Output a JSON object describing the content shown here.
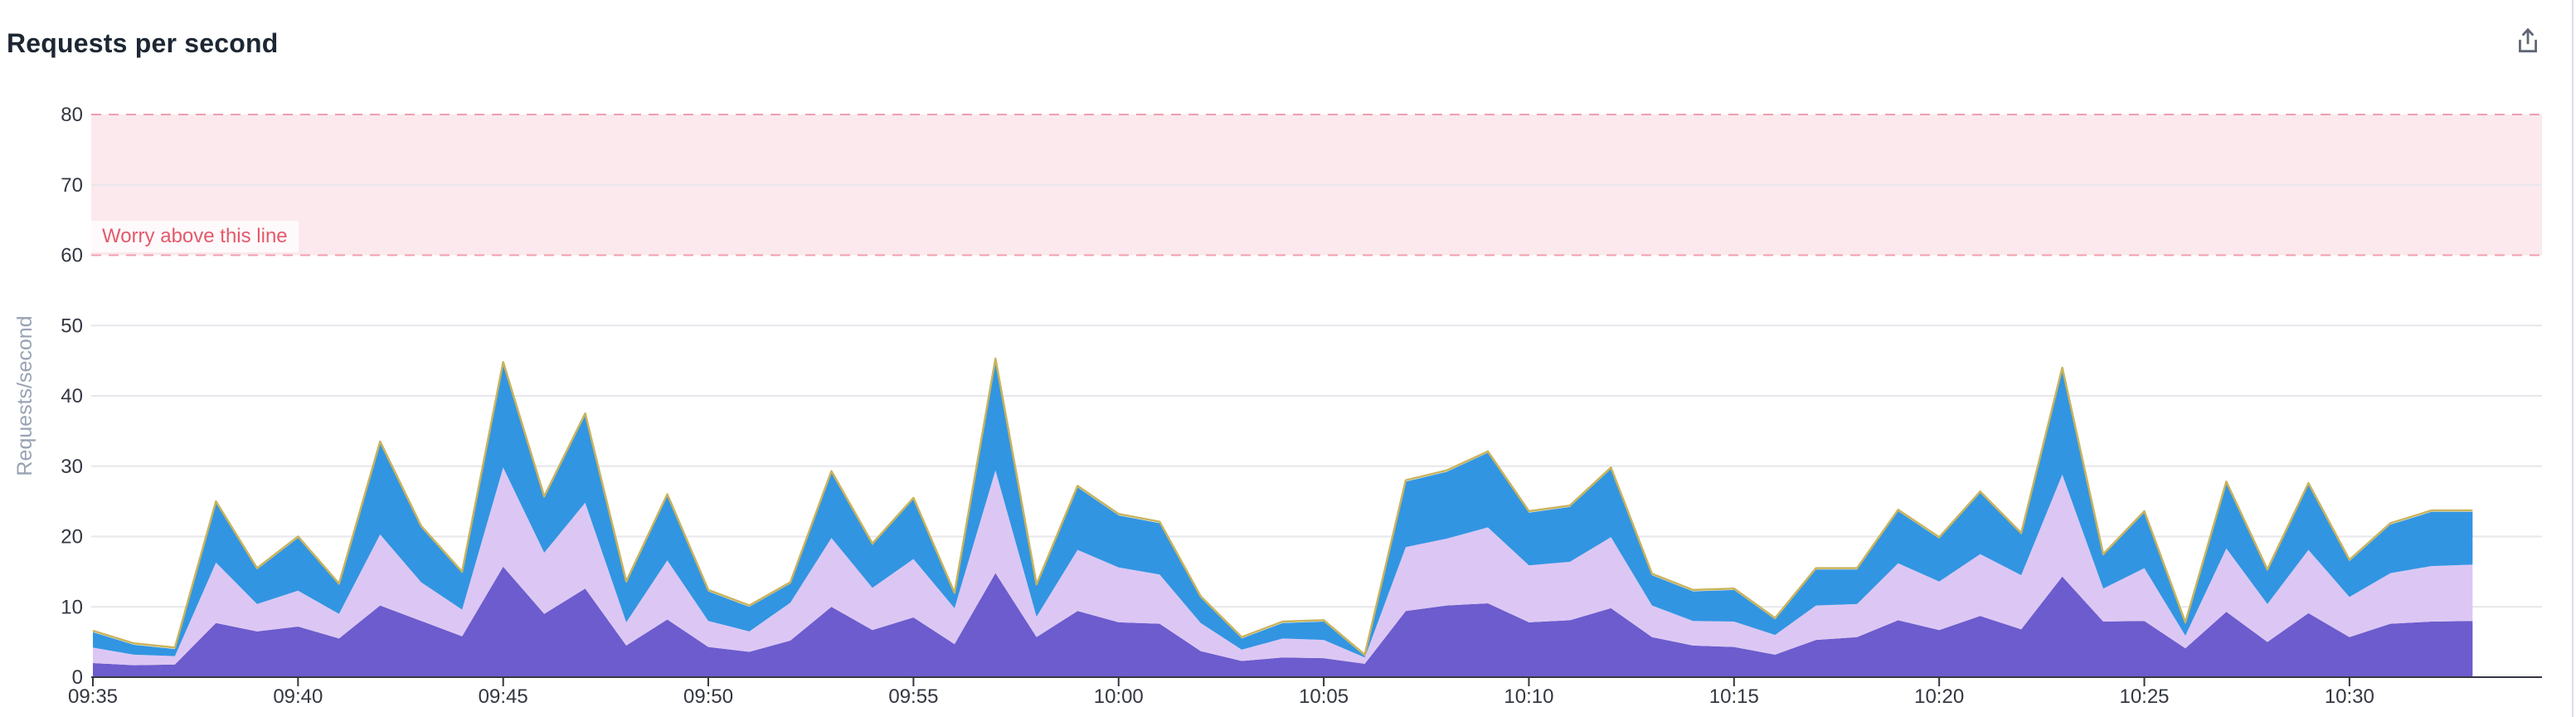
{
  "panel": {
    "title": "Requests per second",
    "export_icon": "export-icon"
  },
  "chart_data": {
    "type": "area",
    "stacked": true,
    "title": "Requests per second",
    "xlabel": "",
    "ylabel": "Requests/second",
    "ylim": [
      0,
      80
    ],
    "y_ticks": [
      0,
      10,
      20,
      30,
      40,
      50,
      60,
      70,
      80
    ],
    "grid": true,
    "legend": "none",
    "point_interval_minutes": 1,
    "x_ticks": [
      "09:35",
      "09:40",
      "09:45",
      "09:50",
      "09:55",
      "10:00",
      "10:05",
      "10:10",
      "10:15",
      "10:20",
      "10:25",
      "10:30"
    ],
    "times": [
      "09:35",
      "09:36",
      "09:37",
      "09:38",
      "09:39",
      "09:40",
      "09:41",
      "09:42",
      "09:43",
      "09:44",
      "09:45",
      "09:46",
      "09:47",
      "09:48",
      "09:49",
      "09:50",
      "09:51",
      "09:52",
      "09:53",
      "09:54",
      "09:55",
      "09:56",
      "09:57",
      "09:58",
      "09:59",
      "10:00",
      "10:01",
      "10:02",
      "10:03",
      "10:04",
      "10:05",
      "10:06",
      "10:07",
      "10:08",
      "10:09",
      "10:10",
      "10:11",
      "10:12",
      "10:13",
      "10:14",
      "10:15",
      "10:16",
      "10:17",
      "10:18",
      "10:19",
      "10:20",
      "10:21",
      "10:22",
      "10:23",
      "10:24",
      "10:25",
      "10:26",
      "10:27",
      "10:28",
      "10:29",
      "10:30",
      "10:31",
      "10:32",
      "10:33"
    ],
    "series": [
      {
        "name": "bottom-purple",
        "color": "#6c5ccd",
        "values": [
          2.0,
          1.7,
          1.8,
          7.7,
          6.5,
          7.2,
          5.5,
          10.2,
          8.0,
          5.8,
          15.7,
          9.0,
          12.6,
          4.5,
          8.2,
          4.3,
          3.6,
          5.2,
          10.0,
          6.7,
          8.5,
          4.7,
          14.8,
          5.7,
          9.4,
          7.8,
          7.6,
          3.7,
          2.3,
          2.8,
          2.7,
          1.9,
          9.4,
          10.2,
          10.5,
          7.8,
          8.1,
          9.8,
          5.7,
          4.5,
          4.3,
          3.2,
          5.3,
          5.7,
          8.1,
          6.7,
          8.7,
          6.8,
          14.3,
          7.9,
          8.0,
          4.1,
          9.3,
          5.0,
          9.1,
          5.7,
          7.6,
          7.9,
          8.0
        ]
      },
      {
        "name": "middle-lavender",
        "color": "#dcc7f4",
        "values": [
          2.2,
          1.5,
          1.2,
          8.6,
          3.9,
          5.1,
          3.5,
          10.1,
          5.5,
          3.8,
          14.1,
          8.7,
          12.2,
          3.3,
          8.4,
          3.7,
          2.9,
          5.4,
          9.8,
          6.0,
          8.3,
          5.1,
          14.6,
          2.9,
          8.7,
          7.8,
          7.0,
          4.0,
          1.6,
          2.7,
          2.6,
          0.9,
          9.1,
          9.5,
          10.8,
          8.1,
          8.3,
          10.1,
          4.5,
          3.5,
          3.6,
          2.8,
          4.9,
          4.7,
          8.1,
          6.9,
          8.8,
          7.7,
          14.5,
          4.7,
          7.5,
          1.8,
          9.0,
          5.4,
          9.0,
          5.7,
          7.2,
          7.9,
          8.0
        ]
      },
      {
        "name": "top-blue",
        "color": "#3295e2",
        "values": [
          2.2,
          1.4,
          1.0,
          8.5,
          4.9,
          7.5,
          4.1,
          13.0,
          7.8,
          5.2,
          14.8,
          7.8,
          12.5,
          5.6,
          9.2,
          4.2,
          3.5,
          2.7,
          9.3,
          6.1,
          8.5,
          2.0,
          15.7,
          4.4,
          8.9,
          7.4,
          7.3,
          3.6,
          1.6,
          2.2,
          2.6,
          0.2,
          9.3,
          9.5,
          10.6,
          7.5,
          7.8,
          9.7,
          4.3,
          4.2,
          4.5,
          2.2,
          5.1,
          4.9,
          7.4,
          6.1,
          8.7,
          5.8,
          15.0,
          4.7,
          7.9,
          1.7,
          9.3,
          4.7,
          9.3,
          5.1,
          6.9,
          7.7,
          7.5
        ]
      },
      {
        "name": "thin-yellow-top",
        "color": "#c9b35c",
        "values": [
          0.2,
          0.2,
          0.2,
          0.2,
          0.2,
          0.2,
          0.2,
          0.2,
          0.2,
          0.2,
          0.2,
          0.2,
          0.2,
          0.2,
          0.2,
          0.2,
          0.2,
          0.2,
          0.2,
          0.2,
          0.2,
          0.2,
          0.2,
          0.2,
          0.2,
          0.2,
          0.2,
          0.2,
          0.2,
          0.2,
          0.2,
          0.2,
          0.2,
          0.2,
          0.2,
          0.2,
          0.2,
          0.2,
          0.2,
          0.2,
          0.2,
          0.2,
          0.2,
          0.2,
          0.2,
          0.2,
          0.2,
          0.2,
          0.2,
          0.2,
          0.2,
          0.2,
          0.2,
          0.2,
          0.2,
          0.2,
          0.2,
          0.2,
          0.2
        ]
      }
    ],
    "annotation": {
      "label": "Worry above this line",
      "band": [
        60,
        80
      ],
      "fill": "#fbe9ed",
      "border": "#f09fae",
      "text_color": "#e4596b"
    }
  }
}
